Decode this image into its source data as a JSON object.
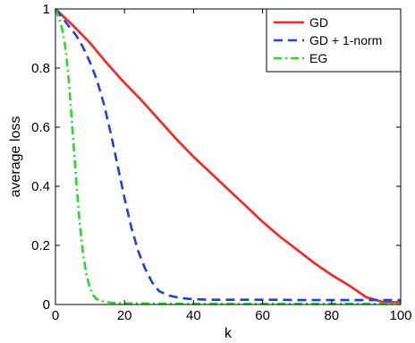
{
  "chart_data": {
    "type": "line",
    "xlabel": "k",
    "ylabel": "average loss",
    "xlim": [
      0,
      100
    ],
    "ylim": [
      0,
      1
    ],
    "x_ticks": [
      0,
      20,
      40,
      60,
      80,
      100
    ],
    "y_ticks": [
      0,
      0.2,
      0.4,
      0.6,
      0.8,
      1
    ],
    "x_tick_labels": [
      "0",
      "20",
      "40",
      "60",
      "80",
      "100"
    ],
    "y_tick_labels": [
      "0",
      "0.2",
      "0.4",
      "0.6",
      "0.8",
      "1"
    ],
    "grid": false,
    "legend_position": "top-right",
    "series": [
      {
        "name": "GD",
        "color": "#ff2020",
        "style": "solid",
        "x": [
          0,
          5,
          10,
          15,
          20,
          25,
          30,
          35,
          40,
          45,
          50,
          55,
          60,
          65,
          70,
          75,
          80,
          85,
          90,
          95,
          100
        ],
        "y": [
          1.0,
          0.945,
          0.885,
          0.815,
          0.75,
          0.69,
          0.625,
          0.56,
          0.5,
          0.445,
          0.39,
          0.335,
          0.28,
          0.23,
          0.185,
          0.14,
          0.1,
          0.065,
          0.025,
          0.008,
          0.008
        ]
      },
      {
        "name": "GD + 1-norm",
        "color": "#1f3fe0",
        "style": "dashed",
        "x": [
          0,
          2,
          4,
          6,
          8,
          10,
          12,
          14,
          16,
          18,
          20,
          22,
          24,
          26,
          28,
          30,
          33,
          36,
          40,
          45,
          50,
          55,
          60,
          65,
          70,
          75,
          80,
          85,
          90,
          95,
          100
        ],
        "y": [
          1.0,
          0.97,
          0.94,
          0.91,
          0.87,
          0.82,
          0.76,
          0.68,
          0.58,
          0.47,
          0.36,
          0.26,
          0.18,
          0.12,
          0.075,
          0.045,
          0.03,
          0.022,
          0.018,
          0.016,
          0.016,
          0.016,
          0.016,
          0.016,
          0.015,
          0.015,
          0.015,
          0.015,
          0.015,
          0.015,
          0.015
        ]
      },
      {
        "name": "EG",
        "color": "#22dd22",
        "style": "dashdot",
        "x": [
          0,
          1,
          2,
          3,
          4,
          5,
          6,
          7,
          8,
          9,
          10,
          11,
          12,
          14,
          16,
          20,
          30,
          40,
          50,
          60,
          70,
          80,
          90,
          100
        ],
        "y": [
          1.0,
          0.97,
          0.93,
          0.86,
          0.74,
          0.58,
          0.42,
          0.28,
          0.17,
          0.1,
          0.055,
          0.03,
          0.018,
          0.01,
          0.006,
          0.004,
          0.003,
          0.002,
          0.002,
          0.002,
          0.002,
          0.002,
          0.002,
          0.002
        ]
      }
    ]
  }
}
